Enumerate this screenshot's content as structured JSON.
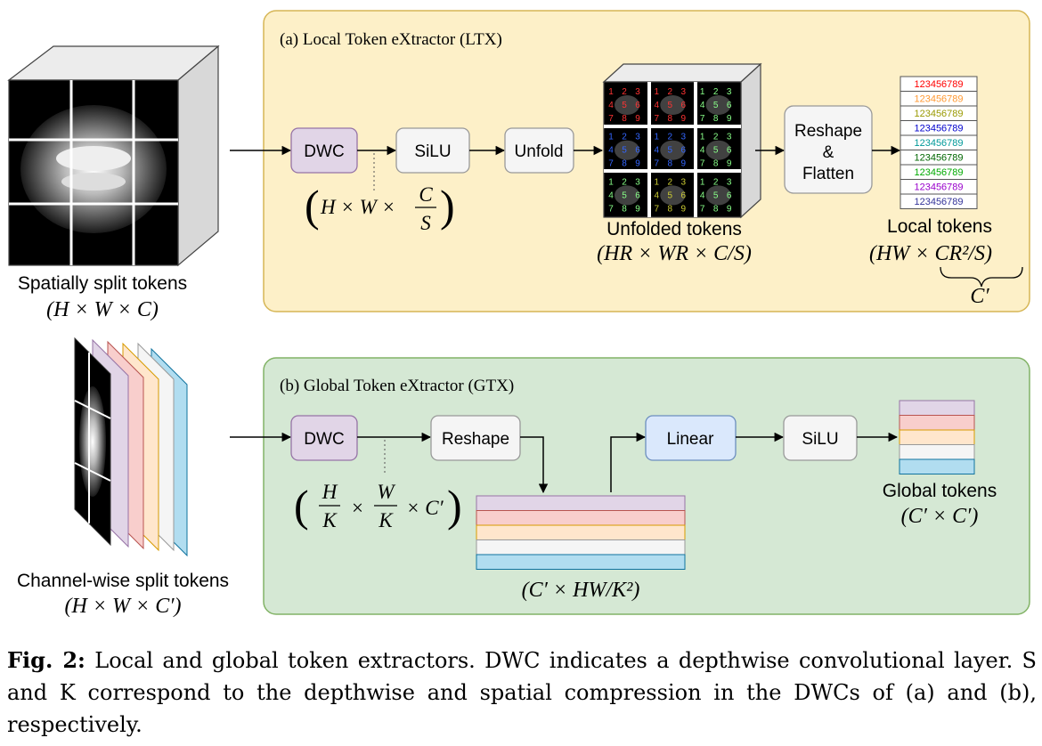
{
  "panels": {
    "ltx_title": "(a) Local Token eXtractor (LTX)",
    "gtx_title": "(b) Global Token eXtractor (GTX)"
  },
  "inputs": {
    "spatial_label": "Spatially split tokens",
    "spatial_dims": "(H × W × C)",
    "channel_label": "Channel-wise split tokens",
    "channel_dims": "(H × W × C′)"
  },
  "ltx": {
    "dwc": "DWC",
    "silu": "SiLU",
    "unfold": "Unfold",
    "reshape_l1": "Reshape",
    "reshape_l2": "&",
    "reshape_l3": "Flatten",
    "dwc_dims_a": "H × W ×",
    "dwc_dims_num": "C",
    "dwc_dims_den": "S",
    "unfolded_label": "Unfolded tokens",
    "unfolded_dims": "(HR × WR × C/S)",
    "local_label": "Local tokens",
    "local_dims": "(HW × CR²/S)",
    "brace_label": "C′",
    "token_row_text": "123456789",
    "grid_digits": [
      "1",
      "2",
      "3",
      "4",
      "5",
      "6",
      "7",
      "8",
      "9"
    ]
  },
  "gtx": {
    "dwc": "DWC",
    "reshape": "Reshape",
    "linear": "Linear",
    "silu": "SiLU",
    "dwc_dims_h": "H",
    "dwc_dims_k1": "K",
    "dwc_dims_w": "W",
    "dwc_dims_k2": "K",
    "dwc_dims_c": "× C′",
    "stack_dims": "(C′ × HW/K²)",
    "global_label": "Global tokens",
    "global_dims": "(C′ × C′)"
  },
  "caption": {
    "fig": "Fig. 2:",
    "text": " Local and global token extractors. DWC indicates a depthwise convolutional layer. S and K correspond to the depthwise and spatial compression in the DWCs of (a) and (b), respectively."
  },
  "colors": {
    "ltx_bg": "#fdf0c8",
    "ltx_border": "#d6b656",
    "gtx_bg": "#d5e8d4",
    "gtx_border": "#82b366",
    "dwc_fill": "#e1d5e7",
    "dwc_border": "#9673a6",
    "node_fill": "#f5f5f5",
    "node_border": "#999999",
    "linear_fill": "#dae8fc",
    "linear_border": "#6c8ebf",
    "bands": [
      "#e1d5e7",
      "#f8cecc",
      "#ffe6cc",
      "#f5f5f5",
      "#b1ddf0"
    ],
    "band_borders": [
      "#9673a6",
      "#b85450",
      "#d79b00",
      "#999999",
      "#10739e"
    ],
    "row_text_colors": [
      "#ff0000",
      "#ff9933",
      "#999900",
      "#0000cc",
      "#009999",
      "#006600",
      "#00aa00",
      "#9900cc",
      "#333399"
    ]
  }
}
